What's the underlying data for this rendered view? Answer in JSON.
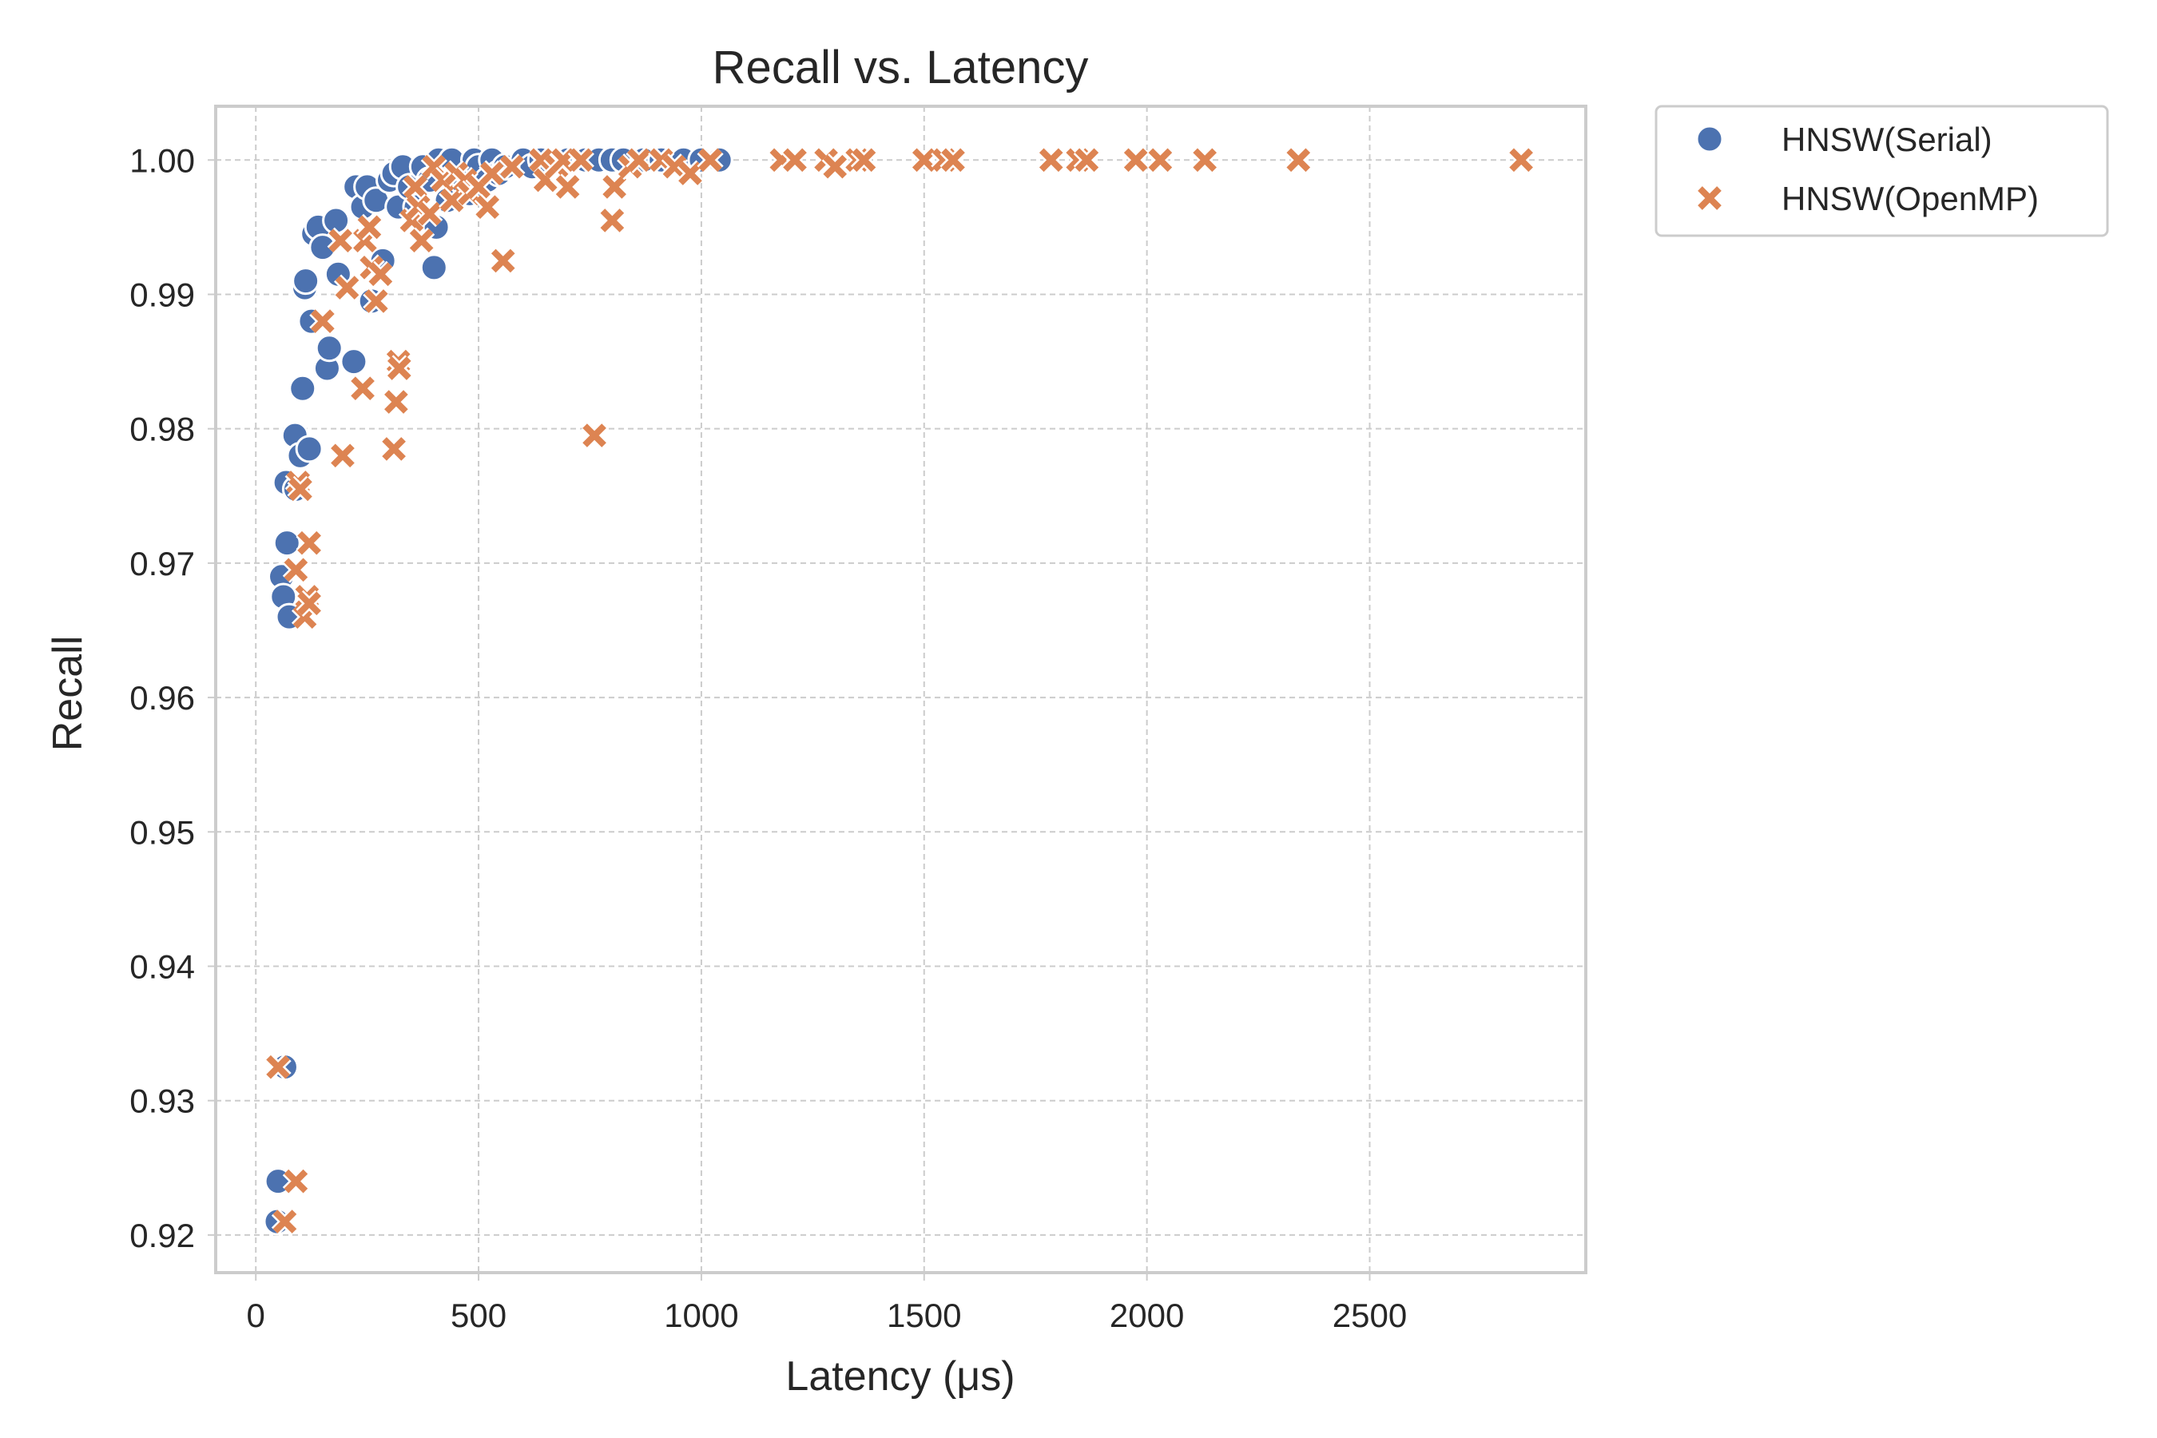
{
  "chart_data": {
    "type": "scatter",
    "title": "Recall vs. Latency",
    "xlabel": "Latency (μs)",
    "ylabel": "Recall",
    "xlim": [
      -90,
      2985
    ],
    "ylim": [
      0.9172,
      1.004
    ],
    "xticks": [
      0,
      500,
      1000,
      1500,
      2000,
      2500
    ],
    "yticks": [
      0.92,
      0.93,
      0.94,
      0.95,
      0.96,
      0.97,
      0.98,
      0.99,
      1.0
    ],
    "xtick_labels": [
      "0",
      "500",
      "1000",
      "1500",
      "2000",
      "2500"
    ],
    "ytick_labels": [
      "0.92",
      "0.93",
      "0.94",
      "0.95",
      "0.96",
      "0.97",
      "0.98",
      "0.99",
      "1.00"
    ],
    "grid": true,
    "legend_position": "outside-top-right",
    "series": [
      {
        "name": "HNSW(Serial)",
        "marker": "circle",
        "color": "#4c72b0",
        "points": [
          [
            48,
            0.921
          ],
          [
            50,
            0.924
          ],
          [
            65,
            0.9325
          ],
          [
            58,
            0.969
          ],
          [
            62,
            0.9675
          ],
          [
            75,
            0.966
          ],
          [
            70,
            0.9715
          ],
          [
            68,
            0.976
          ],
          [
            90,
            0.9755
          ],
          [
            88,
            0.9795
          ],
          [
            100,
            0.978
          ],
          [
            120,
            0.9785
          ],
          [
            105,
            0.983
          ],
          [
            110,
            0.9905
          ],
          [
            112,
            0.991
          ],
          [
            125,
            0.988
          ],
          [
            130,
            0.9945
          ],
          [
            140,
            0.995
          ],
          [
            150,
            0.9935
          ],
          [
            160,
            0.9845
          ],
          [
            165,
            0.986
          ],
          [
            180,
            0.9955
          ],
          [
            185,
            0.9915
          ],
          [
            220,
            0.985
          ],
          [
            225,
            0.998
          ],
          [
            240,
            0.9965
          ],
          [
            250,
            0.998
          ],
          [
            260,
            0.9895
          ],
          [
            270,
            0.997
          ],
          [
            285,
            0.9925
          ],
          [
            300,
            0.9985
          ],
          [
            310,
            0.999
          ],
          [
            320,
            0.9965
          ],
          [
            330,
            0.9995
          ],
          [
            345,
            0.998
          ],
          [
            360,
            0.9965
          ],
          [
            375,
            0.9995
          ],
          [
            390,
            0.9985
          ],
          [
            400,
            0.992
          ],
          [
            405,
            0.995
          ],
          [
            410,
            1.0
          ],
          [
            430,
            0.997
          ],
          [
            440,
            1.0
          ],
          [
            460,
            0.9985
          ],
          [
            480,
            0.9975
          ],
          [
            490,
            1.0
          ],
          [
            500,
            0.9995
          ],
          [
            520,
            0.9985
          ],
          [
            530,
            1.0
          ],
          [
            545,
            0.999
          ],
          [
            560,
            0.9995
          ],
          [
            600,
            1.0
          ],
          [
            620,
            0.9995
          ],
          [
            640,
            1.0
          ],
          [
            700,
            1.0
          ],
          [
            740,
            1.0
          ],
          [
            770,
            1.0
          ],
          [
            800,
            1.0
          ],
          [
            825,
            1.0
          ],
          [
            870,
            1.0
          ],
          [
            910,
            1.0
          ],
          [
            960,
            1.0
          ],
          [
            1000,
            1.0
          ],
          [
            1040,
            1.0
          ]
        ]
      },
      {
        "name": "HNSW(OpenMP)",
        "marker": "x",
        "color": "#dd8452",
        "points": [
          [
            50,
            0.9325
          ],
          [
            65,
            0.921
          ],
          [
            90,
            0.924
          ],
          [
            90,
            0.9695
          ],
          [
            95,
            0.976
          ],
          [
            100,
            0.9755
          ],
          [
            110,
            0.966
          ],
          [
            115,
            0.9675
          ],
          [
            120,
            0.967
          ],
          [
            120,
            0.9715
          ],
          [
            150,
            0.988
          ],
          [
            190,
            0.994
          ],
          [
            195,
            0.978
          ],
          [
            205,
            0.9905
          ],
          [
            240,
            0.983
          ],
          [
            245,
            0.994
          ],
          [
            255,
            0.995
          ],
          [
            260,
            0.992
          ],
          [
            270,
            0.9895
          ],
          [
            280,
            0.9915
          ],
          [
            310,
            0.9785
          ],
          [
            315,
            0.982
          ],
          [
            320,
            0.985
          ],
          [
            322,
            0.9845
          ],
          [
            350,
            0.9955
          ],
          [
            358,
            0.998
          ],
          [
            365,
            0.9965
          ],
          [
            372,
            0.994
          ],
          [
            390,
            0.996
          ],
          [
            400,
            0.9995
          ],
          [
            420,
            0.9985
          ],
          [
            440,
            0.997
          ],
          [
            450,
            0.999
          ],
          [
            470,
            0.9985
          ],
          [
            480,
            0.9975
          ],
          [
            500,
            0.998
          ],
          [
            520,
            0.9965
          ],
          [
            530,
            0.999
          ],
          [
            555,
            0.9925
          ],
          [
            575,
            0.9995
          ],
          [
            640,
            1.0
          ],
          [
            650,
            0.9985
          ],
          [
            675,
            0.9995
          ],
          [
            690,
            1.0
          ],
          [
            700,
            0.998
          ],
          [
            730,
            1.0
          ],
          [
            760,
            0.9795
          ],
          [
            800,
            0.9955
          ],
          [
            805,
            0.998
          ],
          [
            840,
            0.9995
          ],
          [
            860,
            1.0
          ],
          [
            910,
            1.0
          ],
          [
            940,
            0.9995
          ],
          [
            975,
            0.999
          ],
          [
            1020,
            1.0
          ],
          [
            1180,
            1.0
          ],
          [
            1210,
            1.0
          ],
          [
            1280,
            1.0
          ],
          [
            1300,
            0.9995
          ],
          [
            1350,
            1.0
          ],
          [
            1365,
            1.0
          ],
          [
            1500,
            1.0
          ],
          [
            1545,
            1.0
          ],
          [
            1565,
            1.0
          ],
          [
            1785,
            1.0
          ],
          [
            1845,
            1.0
          ],
          [
            1865,
            1.0
          ],
          [
            1975,
            1.0
          ],
          [
            2030,
            1.0
          ],
          [
            2130,
            1.0
          ],
          [
            2340,
            1.0
          ],
          [
            2840,
            1.0
          ]
        ]
      }
    ]
  }
}
